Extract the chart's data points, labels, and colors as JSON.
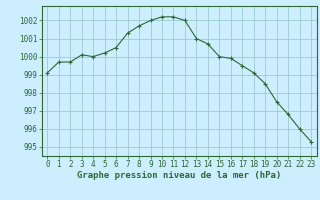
{
  "x": [
    0,
    1,
    2,
    3,
    4,
    5,
    6,
    7,
    8,
    9,
    10,
    11,
    12,
    13,
    14,
    15,
    16,
    17,
    18,
    19,
    20,
    21,
    22,
    23
  ],
  "y": [
    999.1,
    999.7,
    999.7,
    1000.1,
    1000.0,
    1000.2,
    1000.5,
    1001.3,
    1001.7,
    1002.0,
    1002.2,
    1002.2,
    1002.0,
    1001.0,
    1000.7,
    1000.0,
    999.9,
    999.5,
    999.1,
    998.5,
    997.5,
    996.8,
    996.0,
    995.3
  ],
  "line_color": "#2d6a2d",
  "marker": "+",
  "marker_size": 3,
  "marker_edge_width": 0.8,
  "background_color": "#cceeff",
  "grid_color": "#99cccc",
  "xlabel": "Graphe pression niveau de la mer (hPa)",
  "ylim": [
    994.5,
    1002.8
  ],
  "yticks": [
    995,
    996,
    997,
    998,
    999,
    1000,
    1001,
    1002
  ],
  "xticks": [
    0,
    1,
    2,
    3,
    4,
    5,
    6,
    7,
    8,
    9,
    10,
    11,
    12,
    13,
    14,
    15,
    16,
    17,
    18,
    19,
    20,
    21,
    22,
    23
  ],
  "tick_color": "#2d6a2d",
  "tick_fontsize": 5.5,
  "xlabel_fontsize": 6.5,
  "line_width": 0.8
}
